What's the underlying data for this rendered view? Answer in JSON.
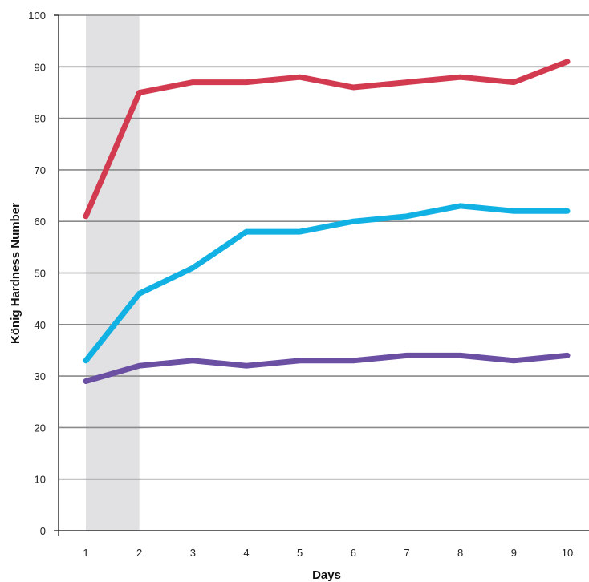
{
  "chart_data": {
    "type": "line",
    "title": "",
    "xlabel": "Days",
    "ylabel": "König Hardness Number",
    "x": [
      1,
      2,
      3,
      4,
      5,
      6,
      7,
      8,
      9,
      10
    ],
    "xlim": [
      0.5,
      10.5
    ],
    "ylim": [
      0,
      100
    ],
    "y_ticks": [
      0,
      10,
      20,
      30,
      40,
      50,
      60,
      70,
      80,
      90,
      100
    ],
    "grid": true,
    "legend": "none",
    "highlight_band": {
      "from": 1,
      "to": 2,
      "color": "#e1e1e3"
    },
    "series": [
      {
        "color": "#d23a4f",
        "values": [
          61,
          85,
          87,
          87,
          88,
          86,
          87,
          88,
          87,
          91
        ]
      },
      {
        "color": "#12b1e3",
        "values": [
          33,
          46,
          51,
          58,
          58,
          60,
          61,
          63,
          62,
          62
        ]
      },
      {
        "color": "#6a4fa3",
        "values": [
          29,
          32,
          33,
          32,
          33,
          33,
          34,
          34,
          33,
          34
        ]
      }
    ]
  }
}
